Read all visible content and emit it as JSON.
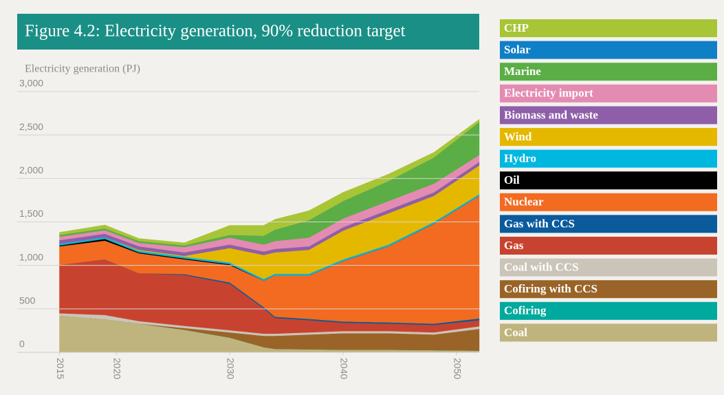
{
  "chart_data": {
    "type": "stacked_area",
    "title": "Figure 4.2: Electricity generation, 90% reduction target",
    "ylabel": "Electricity generation (PJ)",
    "x": [
      2015,
      2019,
      2022,
      2026,
      2030,
      2033,
      2034,
      2037,
      2040,
      2044,
      2048,
      2052
    ],
    "xlim": [
      2014,
      2052
    ],
    "xticks": [
      2015,
      2020,
      2030,
      2040,
      2050
    ],
    "ylim": [
      0,
      3000
    ],
    "yticks": [
      0,
      500,
      {
        "value": 1000,
        "label": "1,000"
      },
      {
        "value": 1500,
        "label": "1,500"
      },
      {
        "value": 2000,
        "label": "2,000"
      },
      {
        "value": 2500,
        "label": "2,500"
      },
      {
        "value": 3000,
        "label": "3,000"
      }
    ],
    "grid": true,
    "legend": "right",
    "series": [
      {
        "name": "Coal",
        "color": "#bfb47d",
        "values": [
          420,
          380,
          330,
          260,
          170,
          60,
          40,
          35,
          30,
          30,
          25,
          20
        ]
      },
      {
        "name": "Cofiring",
        "color": "#00a99d",
        "values": [
          0,
          0,
          0,
          0,
          0,
          0,
          0,
          0,
          0,
          0,
          0,
          0
        ]
      },
      {
        "name": "Cofiring with CCS",
        "color": "#9a6428",
        "values": [
          0,
          0,
          0,
          20,
          60,
          130,
          150,
          170,
          190,
          190,
          180,
          250
        ]
      },
      {
        "name": "Coal with CCS",
        "color": "#cbc4b8",
        "values": [
          30,
          50,
          30,
          25,
          25,
          25,
          25,
          25,
          25,
          25,
          25,
          30
        ]
      },
      {
        "name": "Gas",
        "color": "#c8432f",
        "values": [
          555,
          640,
          550,
          585,
          535,
          290,
          180,
          140,
          95,
          85,
          85,
          70
        ]
      },
      {
        "name": "Gas with CCS",
        "color": "#0a5a9c",
        "values": [
          0,
          0,
          0,
          10,
          15,
          15,
          15,
          15,
          15,
          15,
          15,
          20
        ]
      },
      {
        "name": "Nuclear",
        "color": "#f26b21",
        "values": [
          215,
          215,
          230,
          170,
          200,
          305,
          475,
          500,
          695,
          875,
          1150,
          1410
        ]
      },
      {
        "name": "Oil",
        "color": "#000000",
        "values": [
          10,
          20,
          10,
          10,
          10,
          0,
          0,
          0,
          0,
          0,
          0,
          0
        ]
      },
      {
        "name": "Hydro",
        "color": "#00b7e0",
        "values": [
          20,
          20,
          20,
          20,
          20,
          20,
          20,
          20,
          20,
          20,
          20,
          20
        ]
      },
      {
        "name": "Wind",
        "color": "#e5b800",
        "values": [
          0,
          0,
          10,
          10,
          165,
          275,
          245,
          275,
          330,
          360,
          300,
          330
        ]
      },
      {
        "name": "Biomass and waste",
        "color": "#8e5fa8",
        "values": [
          40,
          40,
          40,
          40,
          40,
          40,
          40,
          40,
          40,
          40,
          40,
          40
        ]
      },
      {
        "name": "Electricity import",
        "color": "#e48bb2",
        "values": [
          40,
          40,
          40,
          60,
          80,
          80,
          90,
          100,
          100,
          100,
          100,
          80
        ]
      },
      {
        "name": "Marine",
        "color": "#5aae45",
        "values": [
          20,
          20,
          20,
          20,
          30,
          100,
          130,
          200,
          200,
          230,
          300,
          380
        ]
      },
      {
        "name": "Solar",
        "color": "#0f7fc6",
        "values": [
          0,
          0,
          0,
          0,
          0,
          0,
          0,
          0,
          0,
          0,
          0,
          0
        ]
      },
      {
        "name": "CHP",
        "color": "#a8c536",
        "values": [
          30,
          40,
          30,
          30,
          110,
          120,
          120,
          110,
          100,
          80,
          60,
          30
        ]
      }
    ]
  }
}
